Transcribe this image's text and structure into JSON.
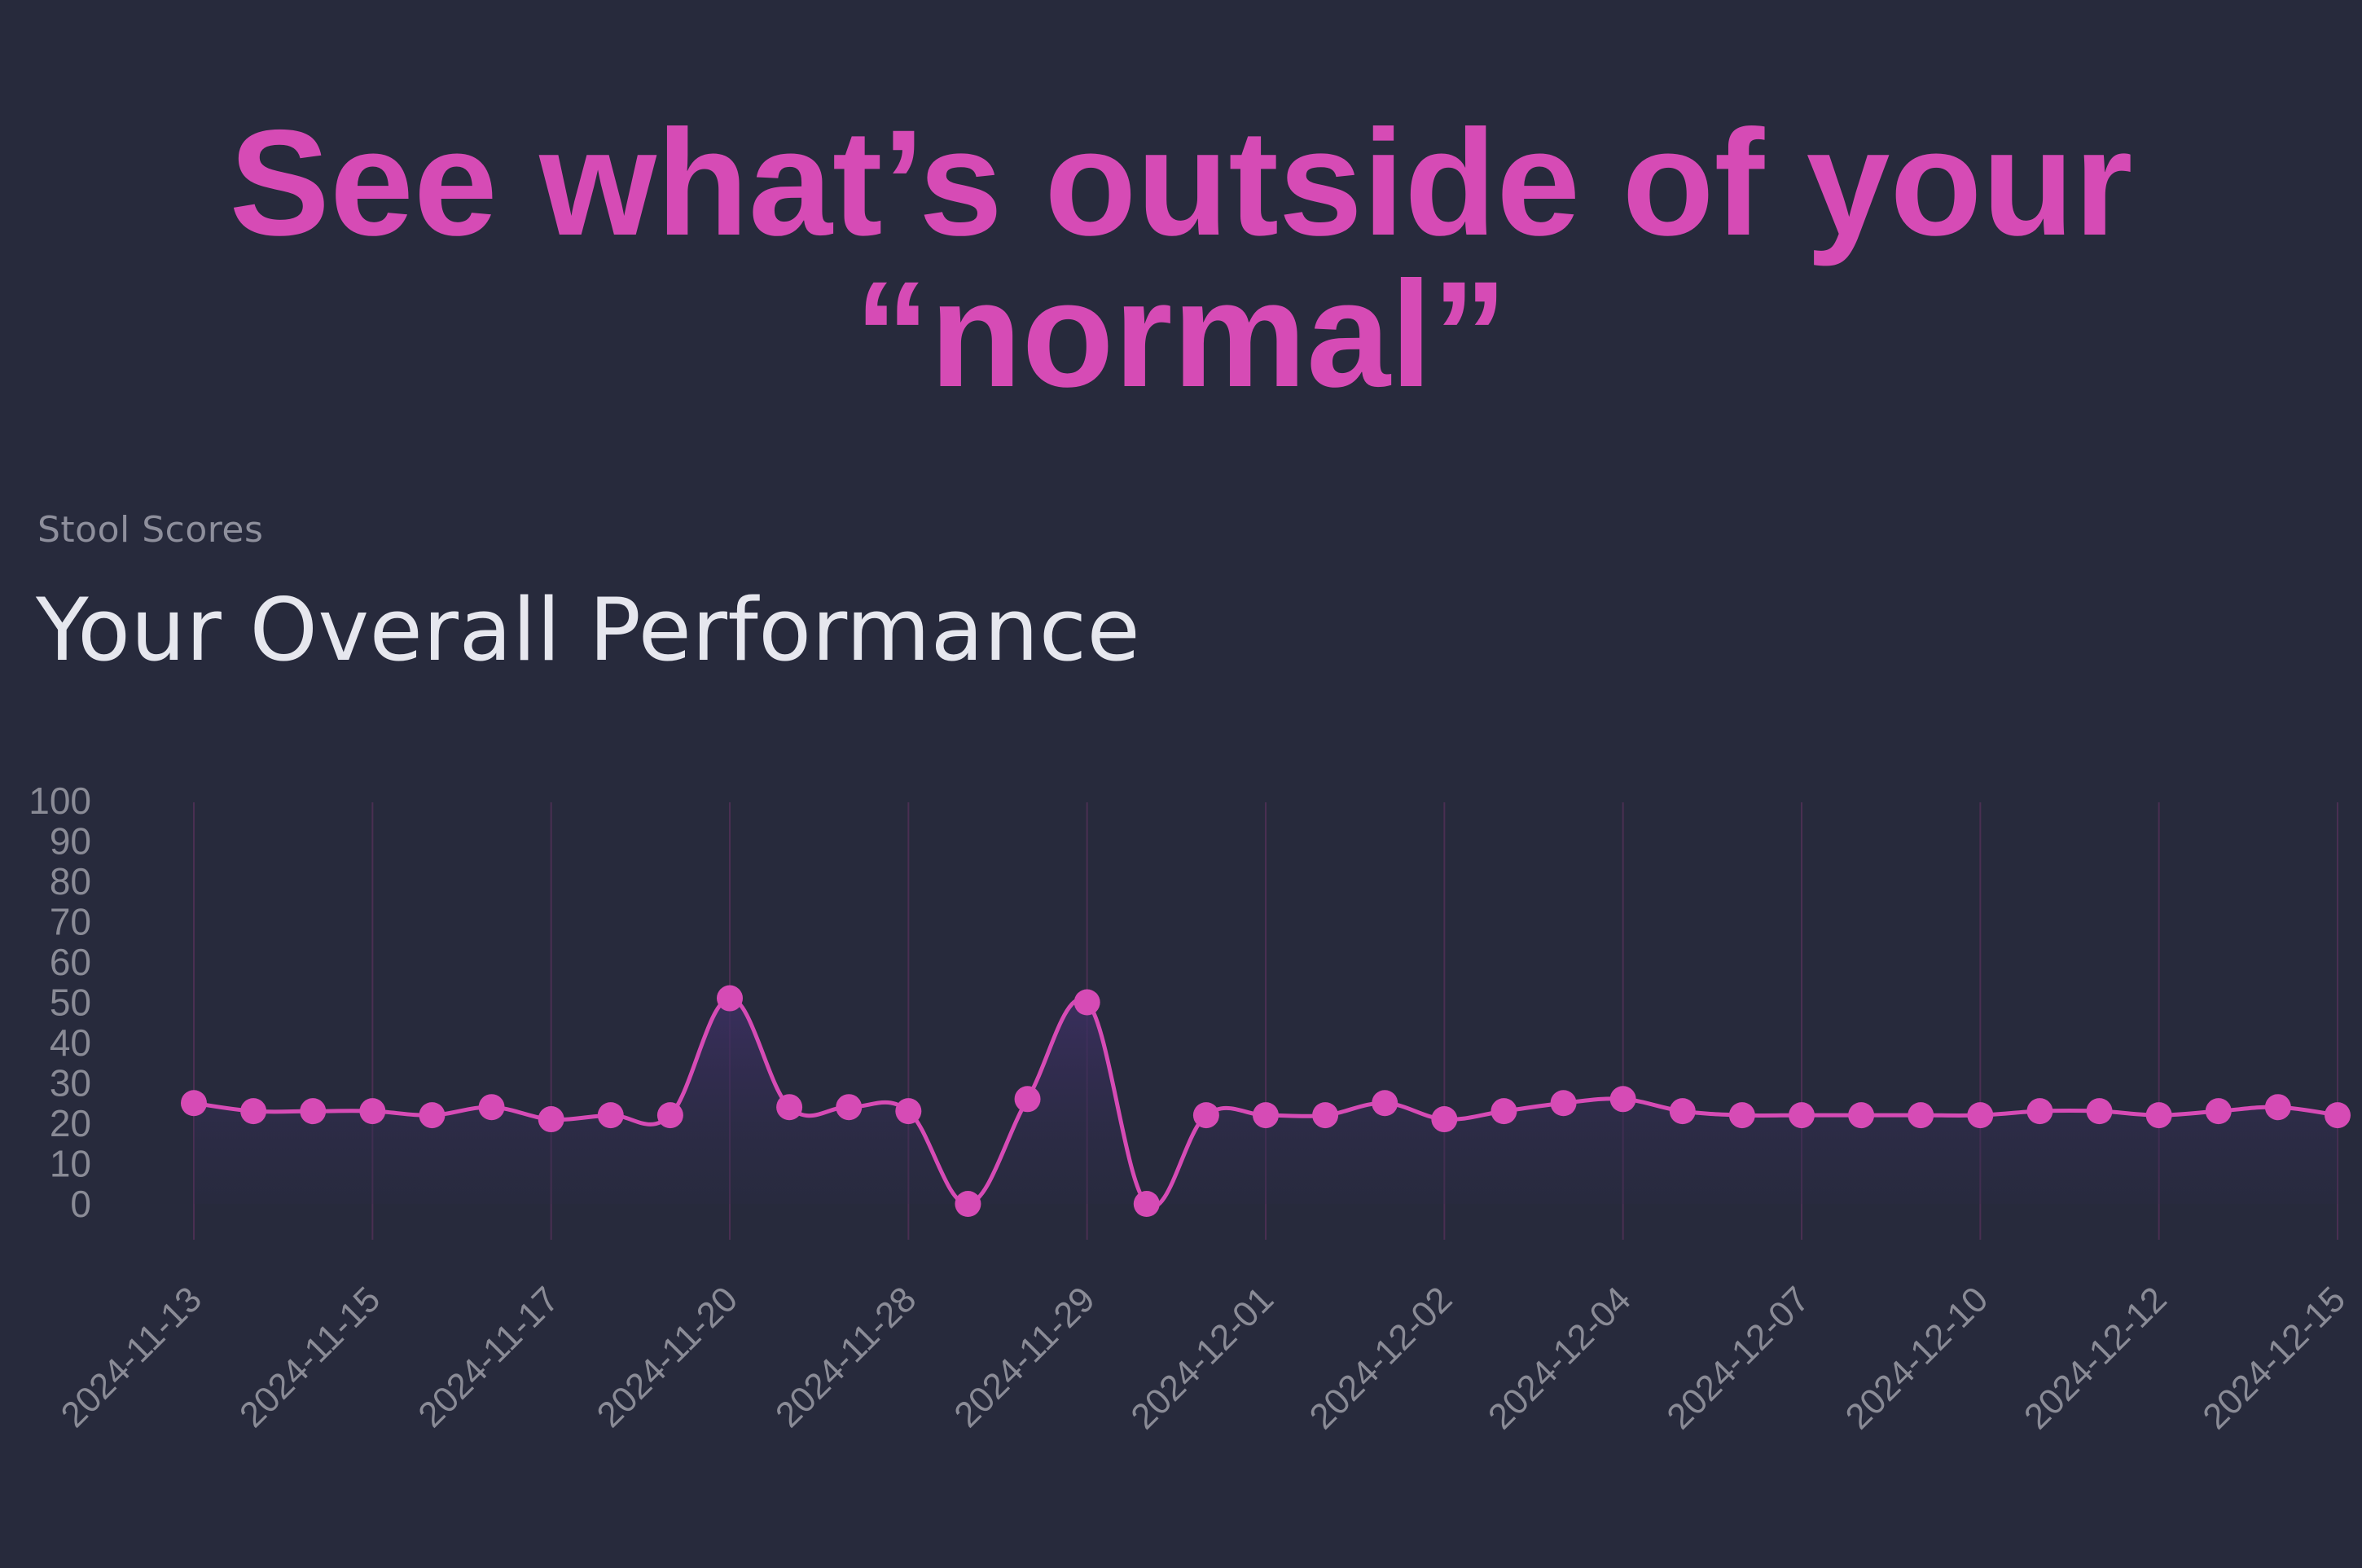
{
  "headline": {
    "line1": "See what’s outside of your",
    "line2": "“normal”"
  },
  "card": {
    "eyebrow": "Stool Scores",
    "title": "Your Overall Performance"
  },
  "colors": {
    "background": "#272a3c",
    "accent": "#d64bb5",
    "gridline": "#4a2f52",
    "tick_text": "#8a8b96"
  },
  "chart_data": {
    "type": "line",
    "ylim": [
      0,
      100
    ],
    "yticks": [
      0,
      10,
      20,
      30,
      40,
      50,
      60,
      70,
      80,
      90,
      100
    ],
    "xtick_labels": [
      "2024-11-13",
      "2024-11-15",
      "2024-11-17",
      "2024-11-20",
      "2024-11-28",
      "2024-11-29",
      "2024-12-01",
      "2024-12-02",
      "2024-12-04",
      "2024-12-07",
      "2024-12-10",
      "2024-12-12",
      "2024-12-15"
    ],
    "grid": "vertical",
    "area_fill": true,
    "series": [
      {
        "values": [
          25,
          23,
          23,
          23,
          22,
          24,
          21,
          22,
          22,
          51,
          24,
          24,
          23,
          0,
          26,
          50,
          0,
          22,
          22,
          22,
          25,
          21,
          23,
          25,
          26,
          23,
          22,
          22,
          22,
          22,
          22,
          23,
          23,
          22,
          23,
          24,
          22
        ]
      }
    ]
  }
}
